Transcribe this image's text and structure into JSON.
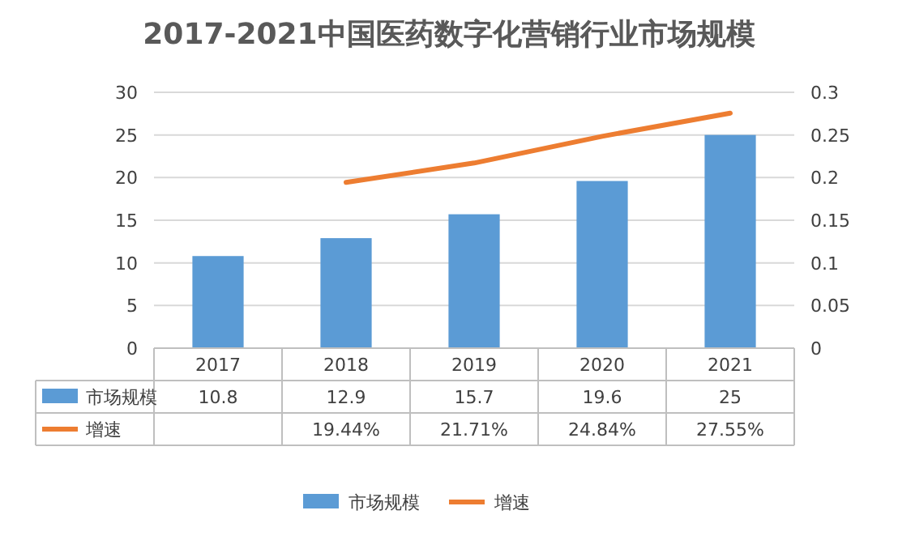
{
  "chart_data": {
    "type": "bar",
    "title": "2017-2021中国医药数字化营销行业市场规模",
    "categories": [
      "2017",
      "2018",
      "2019",
      "2020",
      "2021"
    ],
    "series": [
      {
        "name": "市场规模",
        "color": "#5b9bd5",
        "values": [
          10.8,
          12.9,
          15.7,
          19.6,
          25
        ],
        "value_labels": [
          "10.8",
          "12.9",
          "15.7",
          "19.6",
          "25"
        ]
      },
      {
        "name": "增速",
        "type": "line",
        "axis": "y2",
        "color": "#ed7d31",
        "values": [
          null,
          0.1944,
          0.2171,
          0.2484,
          0.2755
        ],
        "value_labels": [
          null,
          "19.44%",
          "21.71%",
          "24.84%",
          "27.55%"
        ]
      }
    ],
    "ylim": [
      0,
      30
    ],
    "yticks": [
      0,
      5,
      10,
      15,
      20,
      25,
      30
    ],
    "y2lim": [
      0,
      0.3
    ],
    "y2ticks": [
      0,
      0.05,
      0.1,
      0.15,
      0.2,
      0.25,
      0.3
    ],
    "grid": "y",
    "legend": "bottom"
  }
}
